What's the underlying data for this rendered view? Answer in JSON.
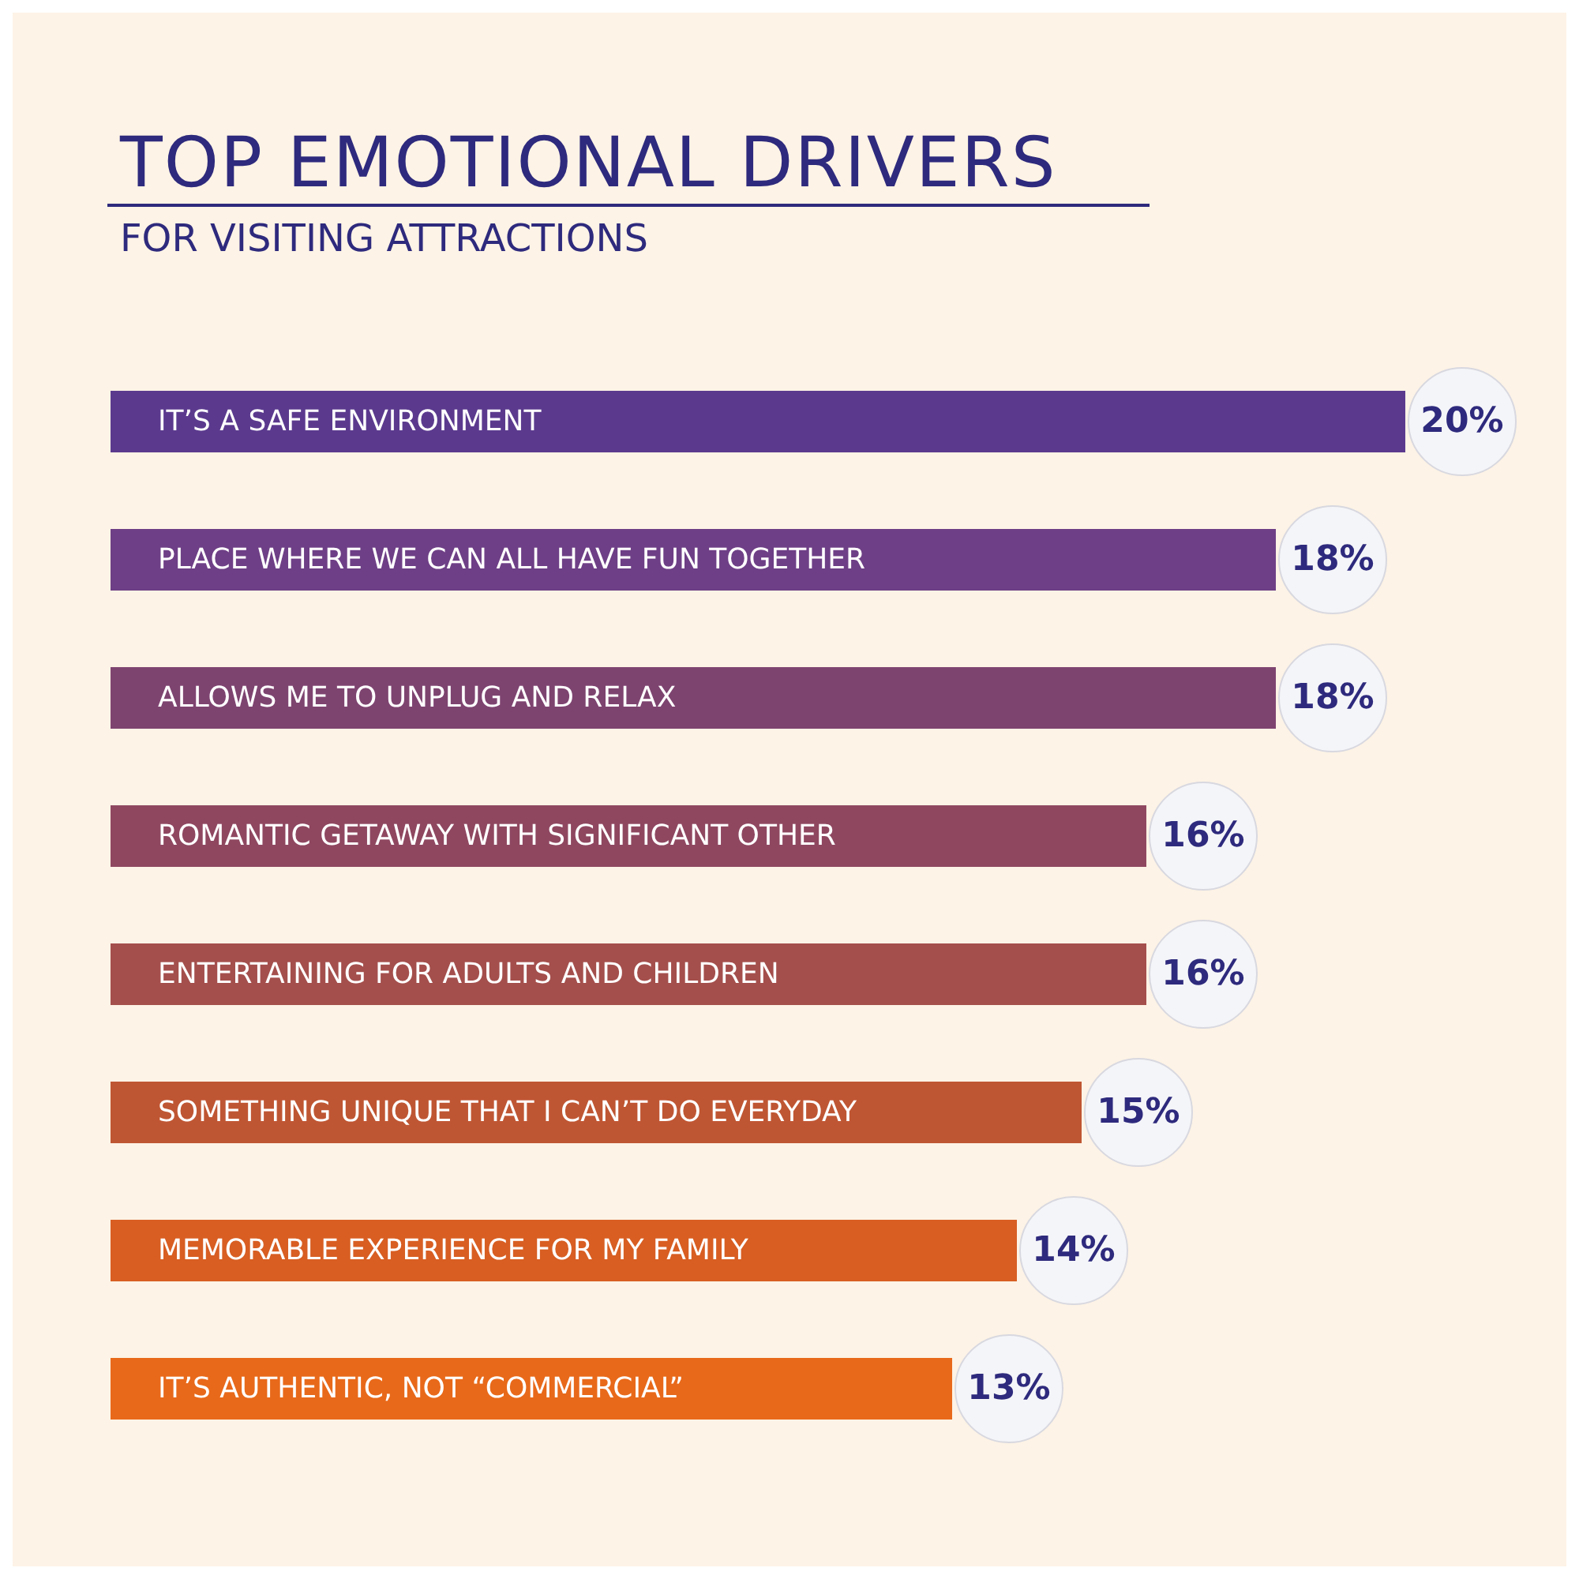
{
  "chart_data": {
    "type": "bar",
    "orientation": "horizontal",
    "title": "TOP EMOTIONAL DRIVERS",
    "subtitle": "FOR VISITING ATTRACTIONS",
    "categories": [
      "IT’S A SAFE ENVIRONMENT",
      "PLACE WHERE WE CAN ALL HAVE FUN TOGETHER",
      "ALLOWS ME TO UNPLUG AND RELAX",
      "ROMANTIC GETAWAY WITH SIGNIFICANT OTHER",
      "ENTERTAINING FOR ADULTS AND CHILDREN",
      "SOMETHING UNIQUE THAT I CAN’T DO EVERYDAY",
      "MEMORABLE EXPERIENCE FOR MY FAMILY",
      "IT’S AUTHENTIC, NOT “COMMERCIAL”"
    ],
    "values": [
      20,
      18,
      18,
      16,
      16,
      15,
      14,
      13
    ],
    "colors": [
      "#5b3a8e",
      "#6e3f86",
      "#7e4470",
      "#8f4760",
      "#a44f4c",
      "#bf5633",
      "#d85e22",
      "#e8691a"
    ],
    "value_labels": [
      "20%",
      "18%",
      "18%",
      "16%",
      "16%",
      "15%",
      "14%",
      "13%"
    ]
  }
}
